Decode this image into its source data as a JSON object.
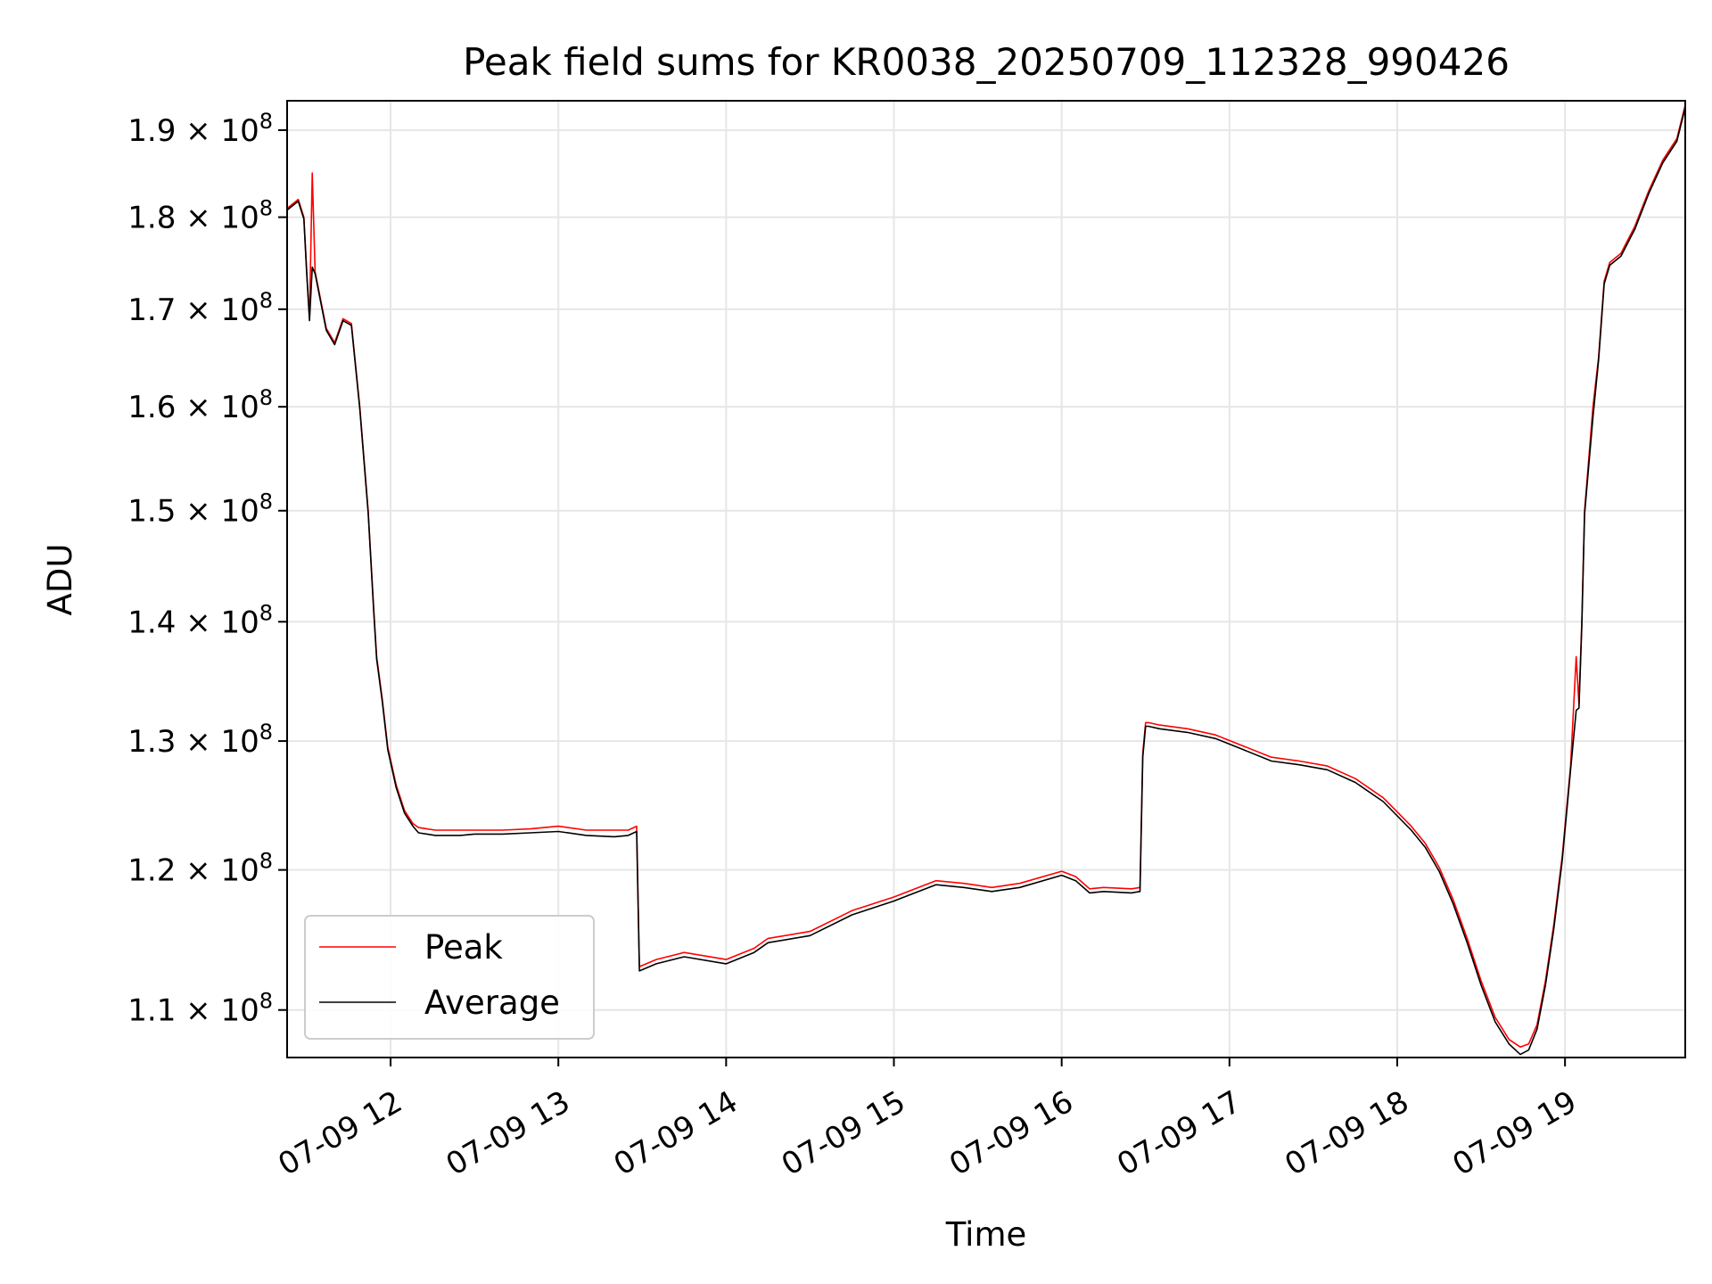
{
  "chart_data": {
    "type": "line",
    "title": "Peak field sums for KR0038_20250709_112328_990426",
    "xlabel": "Time",
    "ylabel": "ADU",
    "y_scale": "log",
    "grid": true,
    "legend_position": "lower-left",
    "xlim": [
      "2025-07-09 11:23",
      "2025-07-09 19:43"
    ],
    "ylim": [
      106800000,
      193500000
    ],
    "x_ticks": [
      "07-09 12",
      "07-09 13",
      "07-09 14",
      "07-09 15",
      "07-09 16",
      "07-09 17",
      "07-09 18",
      "07-09 19"
    ],
    "y_ticks": [
      {
        "value": 110000000,
        "mantissa": "1.1",
        "exponent": "8"
      },
      {
        "value": 120000000,
        "mantissa": "1.2",
        "exponent": "8"
      },
      {
        "value": 130000000,
        "mantissa": "1.3",
        "exponent": "8"
      },
      {
        "value": 140000000,
        "mantissa": "1.4",
        "exponent": "8"
      },
      {
        "value": 150000000,
        "mantissa": "1.5",
        "exponent": "8"
      },
      {
        "value": 160000000,
        "mantissa": "1.6",
        "exponent": "8"
      },
      {
        "value": 170000000,
        "mantissa": "1.7",
        "exponent": "8"
      },
      {
        "value": 180000000,
        "mantissa": "1.8",
        "exponent": "8"
      },
      {
        "value": 190000000,
        "mantissa": "1.9",
        "exponent": "8"
      }
    ],
    "tick_multiplier": "× 10",
    "series": [
      {
        "name": "Peak",
        "color": "#ff0000",
        "x": [
          "11:23",
          "11:27",
          "11:29",
          "11:30",
          "11:31",
          "11:32",
          "11:33",
          "11:35",
          "11:37",
          "11:40",
          "11:43",
          "11:46",
          "11:49",
          "11:52",
          "11:54",
          "11:55",
          "11:57",
          "11:59",
          "12:02",
          "12:05",
          "12:08",
          "12:10",
          "12:13",
          "12:16",
          "12:20",
          "12:25",
          "12:30",
          "12:40",
          "12:50",
          "13:00",
          "13:10",
          "13:20",
          "13:25",
          "13:28",
          "13:29",
          "13:35",
          "13:45",
          "14:00",
          "14:10",
          "14:15",
          "14:30",
          "14:45",
          "15:00",
          "15:15",
          "15:25",
          "15:35",
          "15:45",
          "16:00",
          "16:05",
          "16:10",
          "16:15",
          "16:25",
          "16:28",
          "16:29",
          "16:30",
          "16:31",
          "16:35",
          "16:45",
          "16:55",
          "17:05",
          "17:15",
          "17:25",
          "17:35",
          "17:45",
          "17:55",
          "18:00",
          "18:05",
          "18:10",
          "18:15",
          "18:20",
          "18:25",
          "18:30",
          "18:35",
          "18:40",
          "18:44",
          "18:47",
          "18:50",
          "18:53",
          "18:56",
          "18:59",
          "19:02",
          "19:04",
          "19:05",
          "19:06",
          "19:07",
          "19:10",
          "19:12",
          "19:14",
          "19:16",
          "19:20",
          "19:25",
          "19:30",
          "19:35",
          "19:40",
          "19:43"
        ],
        "values": [
          181000000,
          182000000,
          180000000,
          174000000,
          169000000,
          185000000,
          174000000,
          171000000,
          168000000,
          166500000,
          169000000,
          168500000,
          160000000,
          150000000,
          141000000,
          137000000,
          133500000,
          129500000,
          126500000,
          124500000,
          123500000,
          123200000,
          123100000,
          123000000,
          123000000,
          123000000,
          123000000,
          123000000,
          123100000,
          123300000,
          123000000,
          123000000,
          123000000,
          123300000,
          113000000,
          113500000,
          114000000,
          113500000,
          114300000,
          115000000,
          115500000,
          117000000,
          118000000,
          119200000,
          119000000,
          118700000,
          119000000,
          119900000,
          119500000,
          118600000,
          118700000,
          118600000,
          118700000,
          129000000,
          131500000,
          131500000,
          131300000,
          131000000,
          130500000,
          129600000,
          128700000,
          128400000,
          128000000,
          127000000,
          125500000,
          124400000,
          123300000,
          122000000,
          120200000,
          117800000,
          115000000,
          112000000,
          109500000,
          108000000,
          107500000,
          107700000,
          109000000,
          112000000,
          116000000,
          121000000,
          128000000,
          137000000,
          133000000,
          140000000,
          150000000,
          160000000,
          165000000,
          173000000,
          175000000,
          176000000,
          179000000,
          183000000,
          186500000,
          189000000,
          193000000
        ]
      },
      {
        "name": "Average",
        "color": "#000000",
        "x": [
          "11:23",
          "11:27",
          "11:29",
          "11:30",
          "11:31",
          "11:32",
          "11:33",
          "11:35",
          "11:37",
          "11:40",
          "11:43",
          "11:46",
          "11:49",
          "11:52",
          "11:54",
          "11:55",
          "11:57",
          "11:59",
          "12:02",
          "12:05",
          "12:08",
          "12:10",
          "12:13",
          "12:16",
          "12:20",
          "12:25",
          "12:30",
          "12:40",
          "12:50",
          "13:00",
          "13:10",
          "13:20",
          "13:25",
          "13:28",
          "13:29",
          "13:35",
          "13:45",
          "14:00",
          "14:10",
          "14:15",
          "14:30",
          "14:45",
          "15:00",
          "15:15",
          "15:25",
          "15:35",
          "15:45",
          "16:00",
          "16:05",
          "16:10",
          "16:15",
          "16:25",
          "16:28",
          "16:29",
          "16:30",
          "16:31",
          "16:35",
          "16:45",
          "16:55",
          "17:05",
          "17:15",
          "17:25",
          "17:35",
          "17:45",
          "17:55",
          "18:00",
          "18:05",
          "18:10",
          "18:15",
          "18:20",
          "18:25",
          "18:30",
          "18:35",
          "18:40",
          "18:44",
          "18:47",
          "18:50",
          "18:53",
          "18:56",
          "18:59",
          "19:02",
          "19:04",
          "19:05",
          "19:06",
          "19:07",
          "19:10",
          "19:12",
          "19:14",
          "19:16",
          "19:20",
          "19:25",
          "19:30",
          "19:35",
          "19:40",
          "19:43"
        ],
        "values": [
          180800000,
          181800000,
          179800000,
          173800000,
          168800000,
          174500000,
          173800000,
          170800000,
          167800000,
          166300000,
          168800000,
          168300000,
          159800000,
          149800000,
          140800000,
          136800000,
          133300000,
          129300000,
          126300000,
          124300000,
          123300000,
          122800000,
          122700000,
          122600000,
          122600000,
          122600000,
          122700000,
          122700000,
          122800000,
          122900000,
          122600000,
          122500000,
          122600000,
          122900000,
          112700000,
          113200000,
          113700000,
          113200000,
          114000000,
          114700000,
          115200000,
          116700000,
          117700000,
          118900000,
          118700000,
          118400000,
          118700000,
          119600000,
          119200000,
          118300000,
          118400000,
          118300000,
          118400000,
          128700000,
          131200000,
          131200000,
          131000000,
          130700000,
          130200000,
          129300000,
          128400000,
          128100000,
          127700000,
          126700000,
          125200000,
          124100000,
          123000000,
          121700000,
          119900000,
          117500000,
          114700000,
          111700000,
          109200000,
          107700000,
          107000000,
          107300000,
          108700000,
          111700000,
          115700000,
          120700000,
          127700000,
          132500000,
          132700000,
          139700000,
          149700000,
          159000000,
          164700000,
          172700000,
          174700000,
          175700000,
          178700000,
          182700000,
          186200000,
          188700000,
          192700000
        ]
      }
    ]
  }
}
